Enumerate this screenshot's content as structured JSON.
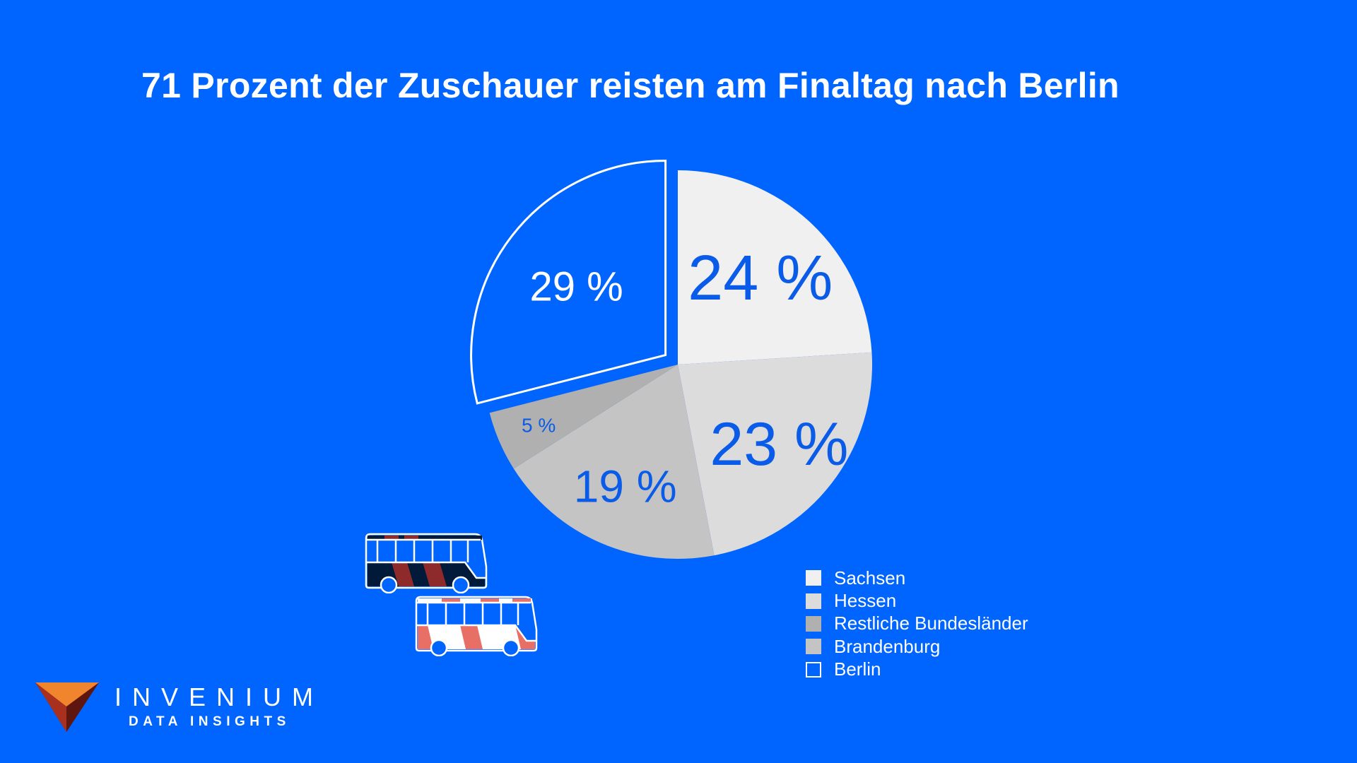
{
  "chart_data": {
    "type": "pie",
    "title": "71 Prozent der Zuschauer reisten am Finaltag nach Berlin",
    "slices": [
      {
        "label": "Sachsen",
        "value": 24,
        "display": "24 %",
        "color": "#f0f0f0"
      },
      {
        "label": "Hessen",
        "value": 23,
        "display": "23 %",
        "color": "#dcdcdc"
      },
      {
        "label": "Brandenburg",
        "value": 19,
        "display": "19 %",
        "color": "#c4c4c4"
      },
      {
        "label": "Restliche Bundesländer",
        "value": 5,
        "display": "5 %",
        "color": "#b0b0b0"
      },
      {
        "label": "Berlin",
        "value": 29,
        "display": "29 %",
        "color": "#0064ff",
        "exploded": true
      }
    ],
    "legend": {
      "placement": "bottom-right",
      "items": [
        {
          "label": "Sachsen",
          "color": "#f0f0f0"
        },
        {
          "label": "Hessen",
          "color": "#dcdcdc"
        },
        {
          "label": "Restliche Bundesländer",
          "color": "#b0b0b0"
        },
        {
          "label": "Brandenburg",
          "color": "#c4c4c4"
        },
        {
          "label": "Berlin",
          "color": "#0064ff"
        }
      ]
    }
  },
  "colors": {
    "background": "#0064ff",
    "label_blue": "#0a5ce8"
  },
  "icons": [
    "bus-icon-dark",
    "bus-icon-light",
    "invenium-triangle-logo"
  ],
  "branding": {
    "name": "INVENIUM",
    "tagline": "DATA INSIGHTS"
  }
}
